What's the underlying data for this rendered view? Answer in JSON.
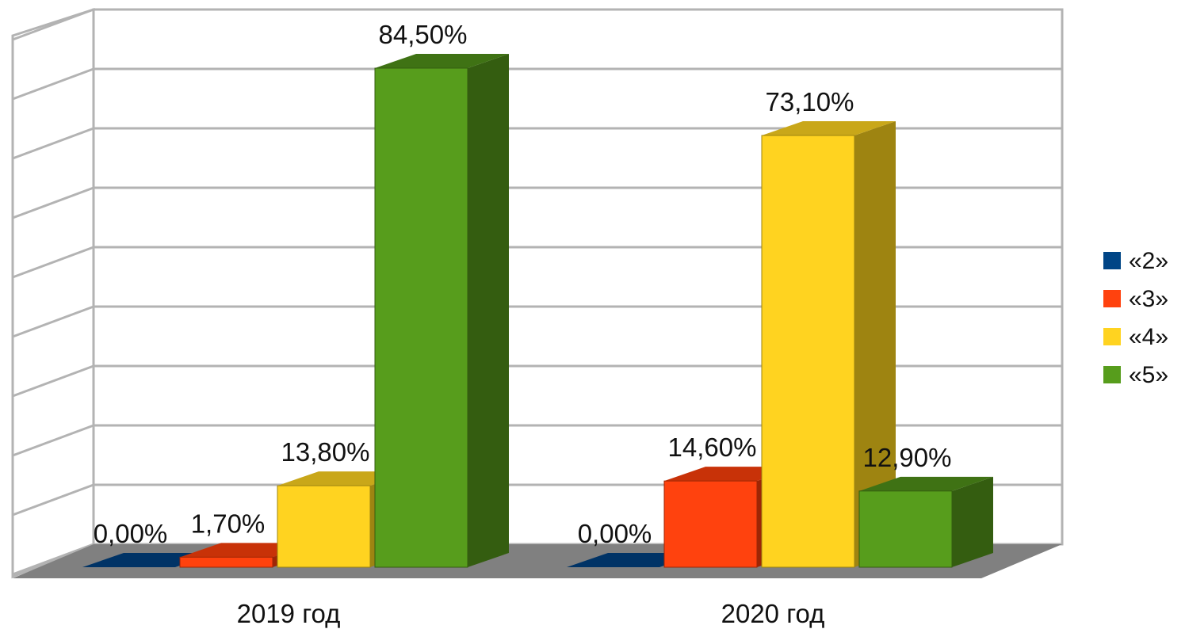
{
  "chart_data": {
    "type": "bar",
    "style": "3d-clustered-columns",
    "categories": [
      "2019 год",
      "2020 год"
    ],
    "series": [
      {
        "name": "«2»",
        "values": [
          0.0,
          0.0
        ],
        "labels": [
          "0,00%",
          "0,00%"
        ],
        "color": "#004586",
        "side": "#002a52",
        "top": "#003366"
      },
      {
        "name": "«3»",
        "values": [
          1.7,
          14.6
        ],
        "labels": [
          "1,70%",
          "14,60%"
        ],
        "color": "#ff420e",
        "side": "#9e2605",
        "top": "#c83208"
      },
      {
        "name": "«4»",
        "values": [
          13.8,
          73.1
        ],
        "labels": [
          "13,80%",
          "73,10%"
        ],
        "color": "#ffd320",
        "side": "#9e8411",
        "top": "#c9a719"
      },
      {
        "name": "«5»",
        "values": [
          84.5,
          12.9
        ],
        "labels": [
          "84,50%",
          "12,90%"
        ],
        "color": "#579d1c",
        "side": "#345d10",
        "top": "#3f7214"
      }
    ],
    "ylim": [
      0,
      90
    ],
    "grid": true,
    "legend": "right",
    "colors": {
      "grid": "#b3b3b3",
      "floor": "#808080"
    }
  }
}
